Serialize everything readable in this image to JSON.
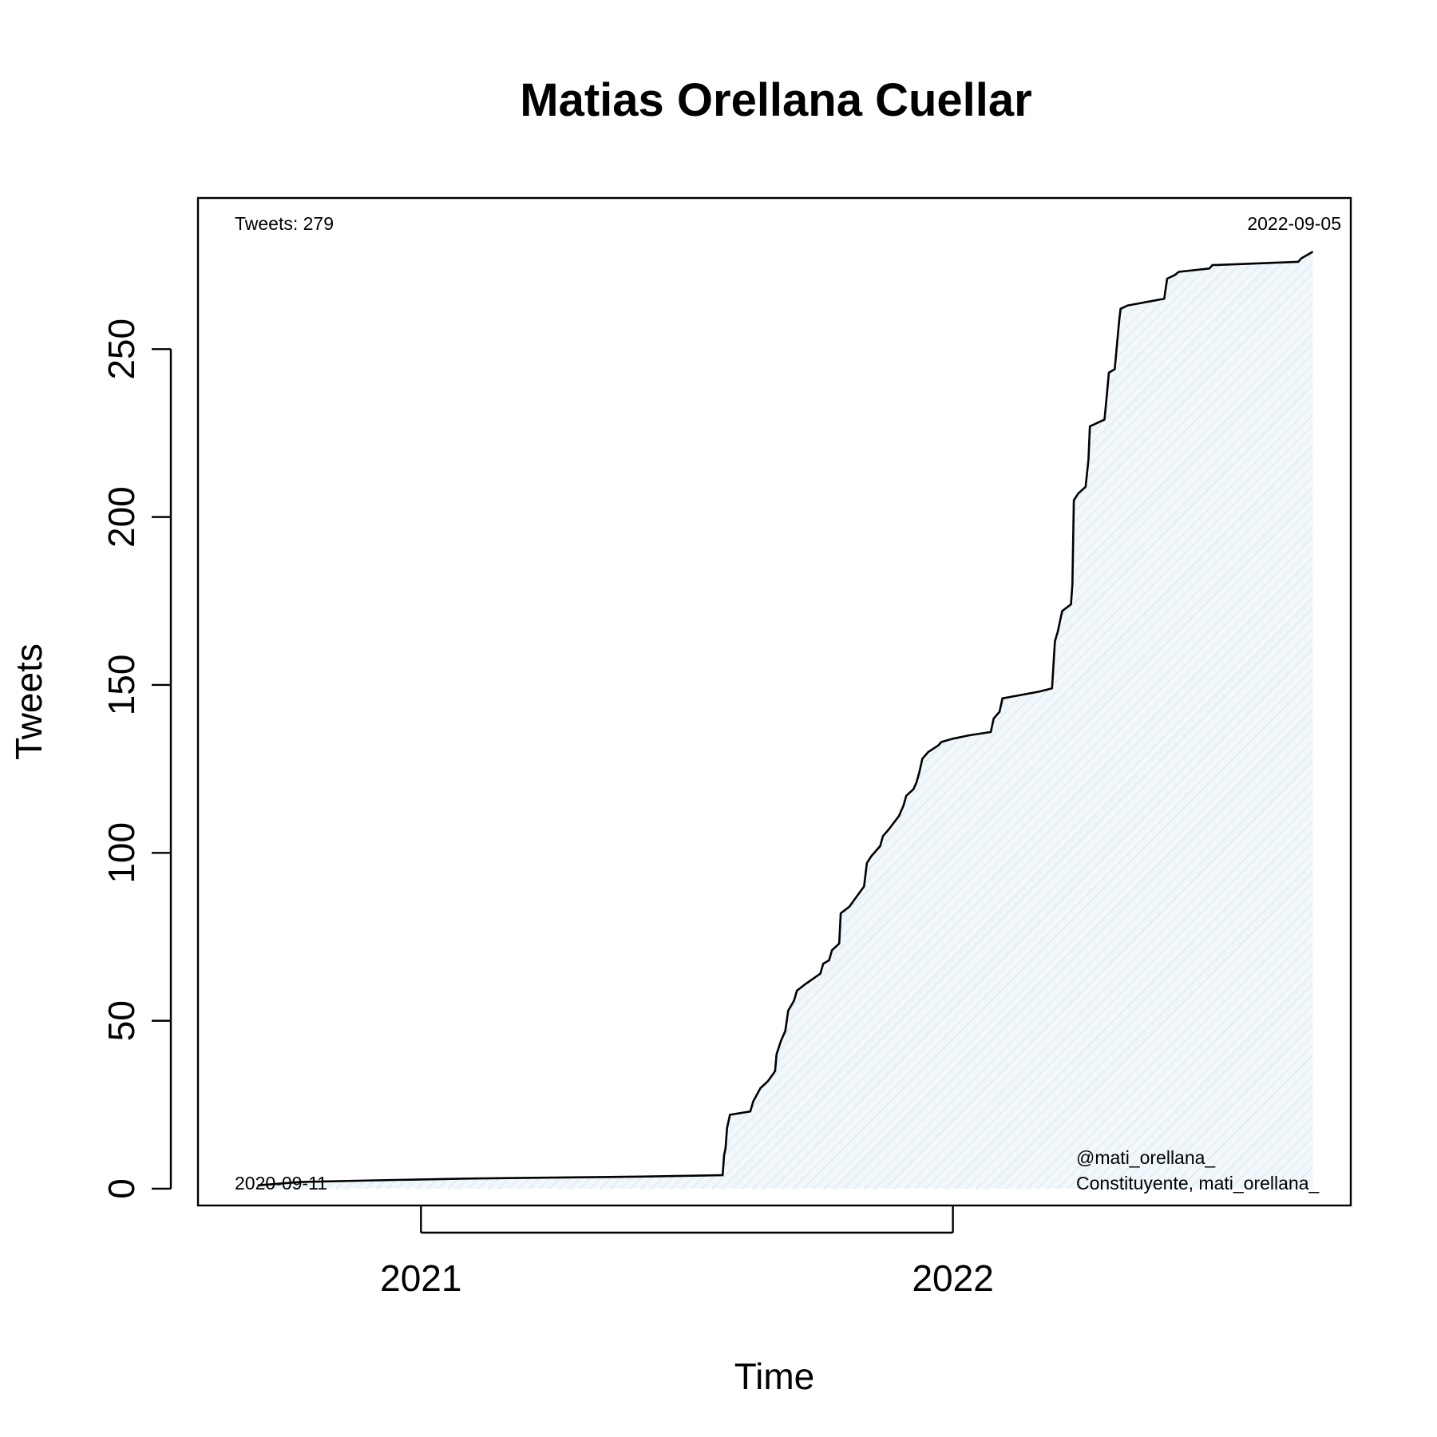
{
  "chart_data": {
    "type": "area",
    "title": "Matias Orellana Cuellar",
    "xlabel": "Time",
    "ylabel": "Tweets",
    "x_range": [
      "2020-08-01",
      "2022-10-01"
    ],
    "ylim": [
      -5,
      295
    ],
    "y_ticks": [
      0,
      50,
      100,
      150,
      200,
      250
    ],
    "x_ticks": [
      {
        "label": "2021",
        "date": "2021-01-01"
      },
      {
        "label": "2022",
        "date": "2022-01-01"
      }
    ],
    "grid": false,
    "fill_color": "#e6f1f5",
    "line_color": "#000000",
    "annotations": {
      "top_left": "Tweets: 279",
      "top_right": "2022-09-05",
      "bottom_left": "2020-09-11",
      "bottom_right_line1": "@mati_orellana_",
      "bottom_right_line2": "Constituyente, mati_orellana_"
    },
    "series": [
      {
        "points": [
          [
            "2020-09-11",
            1
          ],
          [
            "2020-10-10",
            2
          ],
          [
            "2020-12-01",
            2.5
          ],
          [
            "2021-02-01",
            3
          ],
          [
            "2021-04-01",
            3.3
          ],
          [
            "2021-06-01",
            3.6
          ],
          [
            "2021-07-25",
            4
          ],
          [
            "2021-07-27",
            4
          ],
          [
            "2021-07-28",
            10
          ],
          [
            "2021-07-29",
            12
          ],
          [
            "2021-07-30",
            18
          ],
          [
            "2021-07-31",
            20
          ],
          [
            "2021-08-01",
            22
          ],
          [
            "2021-08-15",
            23
          ],
          [
            "2021-08-17",
            26
          ],
          [
            "2021-08-22",
            30
          ],
          [
            "2021-08-27",
            32
          ],
          [
            "2021-09-01",
            35
          ],
          [
            "2021-09-02",
            40
          ],
          [
            "2021-09-05",
            44
          ],
          [
            "2021-09-08",
            47
          ],
          [
            "2021-09-10",
            53
          ],
          [
            "2021-09-14",
            56
          ],
          [
            "2021-09-16",
            59
          ],
          [
            "2021-09-22",
            61
          ],
          [
            "2021-10-02",
            64
          ],
          [
            "2021-10-04",
            67
          ],
          [
            "2021-10-08",
            68
          ],
          [
            "2021-10-10",
            71
          ],
          [
            "2021-10-15",
            73
          ],
          [
            "2021-10-16",
            82
          ],
          [
            "2021-10-22",
            84
          ],
          [
            "2021-10-27",
            87
          ],
          [
            "2021-11-01",
            90
          ],
          [
            "2021-11-03",
            97
          ],
          [
            "2021-11-06",
            99
          ],
          [
            "2021-11-12",
            102
          ],
          [
            "2021-11-14",
            105
          ],
          [
            "2021-11-18",
            107
          ],
          [
            "2021-11-25",
            111
          ],
          [
            "2021-11-28",
            114
          ],
          [
            "2021-11-30",
            117
          ],
          [
            "2021-12-05",
            119
          ],
          [
            "2021-12-07",
            121
          ],
          [
            "2021-12-09",
            124
          ],
          [
            "2021-12-11",
            128
          ],
          [
            "2021-12-15",
            130
          ],
          [
            "2021-12-22",
            132
          ],
          [
            "2021-12-24",
            133
          ],
          [
            "2022-01-01",
            134
          ],
          [
            "2022-01-12",
            135
          ],
          [
            "2022-01-27",
            136
          ],
          [
            "2022-01-29",
            140
          ],
          [
            "2022-02-02",
            142
          ],
          [
            "2022-02-04",
            146
          ],
          [
            "2022-03-01",
            148
          ],
          [
            "2022-03-10",
            149
          ],
          [
            "2022-03-12",
            163
          ],
          [
            "2022-03-14",
            166
          ],
          [
            "2022-03-17",
            172
          ],
          [
            "2022-03-23",
            174
          ],
          [
            "2022-03-24",
            180
          ],
          [
            "2022-03-25",
            205
          ],
          [
            "2022-03-28",
            207
          ],
          [
            "2022-04-02",
            209
          ],
          [
            "2022-04-04",
            217
          ],
          [
            "2022-04-05",
            227
          ],
          [
            "2022-04-15",
            229
          ],
          [
            "2022-04-17",
            238
          ],
          [
            "2022-04-18",
            243
          ],
          [
            "2022-04-22",
            244
          ],
          [
            "2022-04-25",
            258
          ],
          [
            "2022-04-26",
            262
          ],
          [
            "2022-05-01",
            263
          ],
          [
            "2022-05-26",
            265
          ],
          [
            "2022-05-28",
            271
          ],
          [
            "2022-06-02",
            272
          ],
          [
            "2022-06-05",
            273
          ],
          [
            "2022-06-26",
            274
          ],
          [
            "2022-06-28",
            275
          ],
          [
            "2022-08-26",
            276
          ],
          [
            "2022-08-28",
            277
          ],
          [
            "2022-09-05",
            279
          ]
        ]
      }
    ]
  }
}
